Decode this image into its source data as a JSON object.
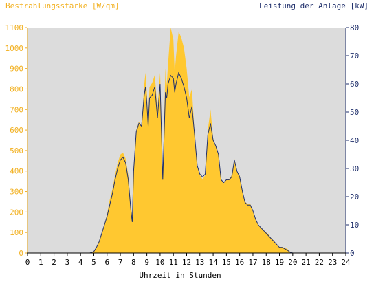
{
  "chart_data": {
    "type": "area",
    "left_axis_title": "Bestrahlungsstärke [W/qm]",
    "right_axis_title": "Leistung der Anlage [kW]",
    "xlabel": "Uhrzeit in Stunden",
    "xlim": [
      0,
      24
    ],
    "x_ticks": [
      "0",
      "1",
      "2",
      "3",
      "4",
      "5",
      "6",
      "7",
      "8",
      "9",
      "10",
      "11",
      "12",
      "13",
      "14",
      "15",
      "16",
      "17",
      "18",
      "19",
      "20",
      "21",
      "22",
      "23",
      "24"
    ],
    "ylim_left": [
      0,
      1100
    ],
    "y_ticks_left": [
      "0",
      "100",
      "200",
      "300",
      "400",
      "500",
      "600",
      "700",
      "800",
      "900",
      "1000",
      "1100"
    ],
    "ylim_right": [
      0,
      80
    ],
    "y_ticks_right": [
      "0",
      "10",
      "20",
      "30",
      "40",
      "50",
      "60",
      "70",
      "80"
    ],
    "grid": false,
    "colors": {
      "plot_background": "#dcdcdc",
      "irradiance": "#ffc830",
      "power": "#1f2f6b",
      "left_axis": "#f2b01f",
      "right_axis": "#1f2f6b"
    },
    "series": [
      {
        "name": "Bestrahlungsstärke [W/qm]",
        "axis": "left",
        "style": "area",
        "x": [
          0,
          4.7,
          5.0,
          5.2,
          5.4,
          5.6,
          5.8,
          6.0,
          6.2,
          6.4,
          6.6,
          6.8,
          7.0,
          7.2,
          7.4,
          7.6,
          7.8,
          7.9,
          8.0,
          8.2,
          8.4,
          8.6,
          8.8,
          8.9,
          9.0,
          9.1,
          9.2,
          9.4,
          9.6,
          9.8,
          10.0,
          10.2,
          10.4,
          10.5,
          10.6,
          10.8,
          11.0,
          11.1,
          11.2,
          11.4,
          11.6,
          11.8,
          12.0,
          12.2,
          12.4,
          12.6,
          12.8,
          13.0,
          13.2,
          13.4,
          13.6,
          13.8,
          14.0,
          14.2,
          14.4,
          14.6,
          14.8,
          15.0,
          15.2,
          15.4,
          15.6,
          15.8,
          16.0,
          16.2,
          16.4,
          16.6,
          16.8,
          17.0,
          17.2,
          17.4,
          17.6,
          17.8,
          18.0,
          18.2,
          18.4,
          18.6,
          18.8,
          19.0,
          19.2,
          19.4,
          19.6,
          19.8,
          20.0,
          24
        ],
        "y": [
          0,
          0,
          10,
          30,
          60,
          100,
          140,
          190,
          260,
          310,
          380,
          440,
          480,
          490,
          460,
          380,
          230,
          180,
          420,
          600,
          640,
          620,
          820,
          880,
          780,
          640,
          810,
          830,
          870,
          700,
          880,
          380,
          900,
          820,
          920,
          1100,
          1040,
          880,
          960,
          1080,
          1050,
          1000,
          900,
          760,
          800,
          580,
          420,
          380,
          360,
          380,
          600,
          700,
          560,
          520,
          480,
          360,
          340,
          360,
          360,
          380,
          460,
          400,
          380,
          300,
          250,
          240,
          240,
          200,
          160,
          140,
          120,
          110,
          100,
          90,
          70,
          60,
          40,
          30,
          30,
          25,
          20,
          5,
          0,
          0
        ]
      },
      {
        "name": "Leistung der Anlage [kW]",
        "axis": "right",
        "style": "line",
        "x": [
          0,
          4.7,
          5.0,
          5.2,
          5.4,
          5.6,
          5.8,
          6.0,
          6.2,
          6.4,
          6.6,
          6.8,
          7.0,
          7.2,
          7.4,
          7.6,
          7.8,
          7.9,
          8.0,
          8.2,
          8.4,
          8.6,
          8.8,
          8.9,
          9.0,
          9.1,
          9.2,
          9.4,
          9.6,
          9.8,
          10.0,
          10.2,
          10.4,
          10.5,
          10.6,
          10.8,
          11.0,
          11.1,
          11.2,
          11.4,
          11.6,
          11.8,
          12.0,
          12.2,
          12.4,
          12.6,
          12.8,
          13.0,
          13.2,
          13.4,
          13.6,
          13.8,
          14.0,
          14.2,
          14.4,
          14.6,
          14.8,
          15.0,
          15.2,
          15.4,
          15.6,
          15.8,
          16.0,
          16.2,
          16.4,
          16.6,
          16.8,
          17.0,
          17.2,
          17.4,
          17.6,
          17.8,
          18.0,
          18.2,
          18.4,
          18.6,
          18.8,
          19.0,
          19.2,
          19.4,
          19.6,
          19.8,
          20.0,
          24
        ],
        "y": [
          0,
          0,
          0.5,
          2,
          4,
          7,
          10,
          13,
          17,
          21,
          26,
          30,
          33,
          34,
          32,
          26,
          15,
          11,
          29,
          43,
          46,
          45,
          56,
          59,
          53,
          45,
          55,
          56,
          59,
          48,
          60,
          26,
          57,
          55,
          60,
          63,
          62,
          57,
          60,
          64,
          62,
          59,
          55,
          48,
          52,
          42,
          31,
          28,
          27,
          28,
          42,
          46,
          40,
          38,
          35,
          26,
          25,
          26,
          26,
          27,
          33,
          29,
          27,
          22,
          18,
          17,
          17,
          15,
          12,
          10,
          9,
          8,
          7,
          6,
          5,
          4,
          3,
          2,
          2,
          1.5,
          1,
          0.3,
          0,
          0
        ]
      }
    ]
  }
}
